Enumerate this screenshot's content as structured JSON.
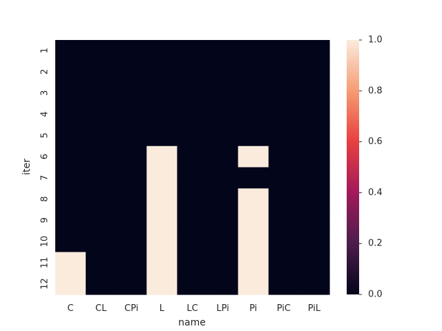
{
  "chart_data": {
    "type": "heatmap",
    "xlabel": "name",
    "ylabel": "iter",
    "x_categories": [
      "C",
      "CL",
      "CPi",
      "L",
      "LC",
      "LPi",
      "Pi",
      "PiC",
      "PiL"
    ],
    "y_categories": [
      "1",
      "2",
      "3",
      "4",
      "5",
      "6",
      "7",
      "8",
      "9",
      "10",
      "11",
      "12"
    ],
    "values": [
      [
        0,
        0,
        0,
        0,
        0,
        0,
        0,
        0,
        0
      ],
      [
        0,
        0,
        0,
        0,
        0,
        0,
        0,
        0,
        0
      ],
      [
        0,
        0,
        0,
        0,
        0,
        0,
        0,
        0,
        0
      ],
      [
        0,
        0,
        0,
        0,
        0,
        0,
        0,
        0,
        0
      ],
      [
        0,
        0,
        0,
        0,
        0,
        0,
        0,
        0,
        0
      ],
      [
        0,
        0,
        0,
        1,
        0,
        0,
        1,
        0,
        0
      ],
      [
        0,
        0,
        0,
        1,
        0,
        0,
        0,
        0,
        0
      ],
      [
        0,
        0,
        0,
        1,
        0,
        0,
        1,
        0,
        0
      ],
      [
        0,
        0,
        0,
        1,
        0,
        0,
        1,
        0,
        0
      ],
      [
        0,
        0,
        0,
        1,
        0,
        0,
        1,
        0,
        0
      ],
      [
        1,
        0,
        0,
        1,
        0,
        0,
        1,
        0,
        0
      ],
      [
        1,
        0,
        0,
        1,
        0,
        0,
        1,
        0,
        0
      ]
    ],
    "colorbar": {
      "range": [
        0.0,
        1.0
      ],
      "tick_labels": [
        "0.0",
        "0.2",
        "0.4",
        "0.6",
        "0.8",
        "1.0"
      ]
    },
    "colormap": [
      "#03051a",
      "#4c1d4b",
      "#a11a5b",
      "#e83f3f",
      "#f69c73",
      "#faebdd"
    ]
  }
}
